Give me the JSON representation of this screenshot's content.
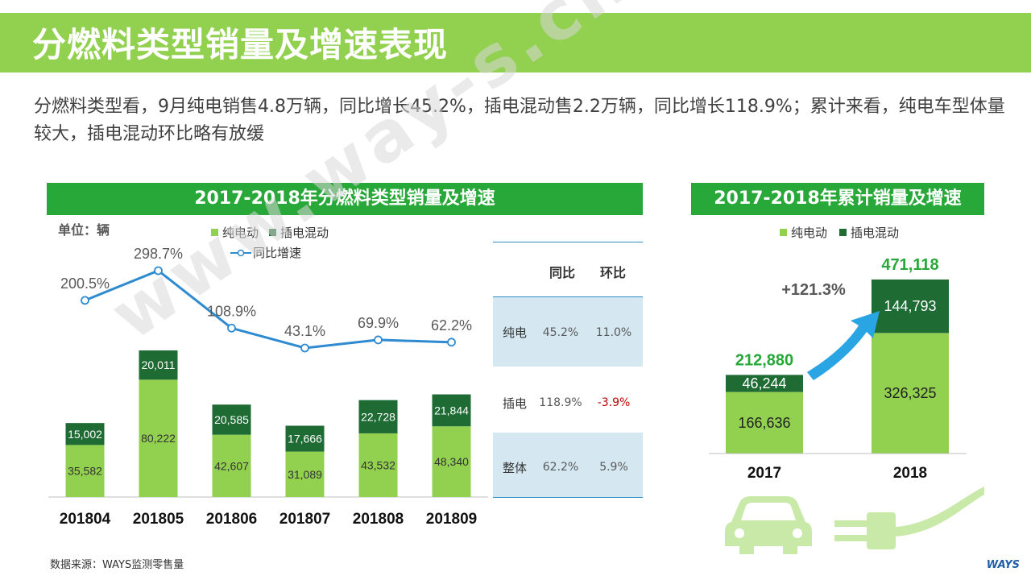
{
  "page": {
    "title": "分燃料类型销量及增速表现",
    "subtitle": "分燃料类型看，9月纯电销售4.8万辆，同比增长45.2%，插电混动售2.2万辆，同比增长118.9%；累计来看，纯电车型体量较大，插电混动环比略有放缓",
    "source": "数据来源：WAYS监测零售量",
    "brand": "WAYS",
    "watermark": "www.way-s.cn"
  },
  "colors": {
    "title_bar": "#92d050",
    "header": "#27a838",
    "ev": "#92d050",
    "phev": "#1e6b34",
    "line": "#2e8bd0",
    "table_band": "#d5e8f2",
    "neg": "#c00000",
    "total_label": "#27a838"
  },
  "left_chart": {
    "header": "2017-2018年分燃料类型销量及增速",
    "unit": "单位：辆",
    "legend_ev": "纯电动",
    "legend_phev": "插电混动",
    "legend_line": "同比增速"
  },
  "table": {
    "col_yoy": "同比",
    "col_mom": "环比",
    "rows": [
      {
        "label": "纯电",
        "yoy": "45.2%",
        "mom": "11.0%",
        "negative": false
      },
      {
        "label": "插电",
        "yoy": "118.9%",
        "mom": "-3.9%",
        "negative": true
      },
      {
        "label": "整体",
        "yoy": "62.2%",
        "mom": "5.9%",
        "negative": false
      }
    ]
  },
  "right_chart": {
    "header": "2017-2018年累计销量及增速",
    "legend_ev": "纯电动",
    "legend_phev": "插电混动",
    "growth_label": "+121.3%"
  },
  "chart_data": [
    {
      "type": "bar",
      "stacked": true,
      "title": "2017-2018年分燃料类型销量及增速",
      "categories": [
        "201804",
        "201805",
        "201806",
        "201807",
        "201808",
        "201809"
      ],
      "series": [
        {
          "name": "纯电动",
          "values": [
            35582,
            80222,
            42607,
            31089,
            43532,
            48340
          ]
        },
        {
          "name": "插电混动",
          "values": [
            15002,
            20011,
            20585,
            17666,
            22728,
            21844
          ]
        }
      ],
      "line": {
        "name": "同比增速",
        "values": [
          200.5,
          298.7,
          108.9,
          43.1,
          69.9,
          62.2
        ],
        "labels": [
          "200.5%",
          "298.7%",
          "108.9%",
          "43.1%",
          "69.9%",
          "62.2%"
        ]
      },
      "ylabel": "单位：辆",
      "legend": "top"
    },
    {
      "type": "bar",
      "stacked": true,
      "title": "2017-2018年累计销量及增速",
      "categories": [
        "2017",
        "2018"
      ],
      "series": [
        {
          "name": "纯电动",
          "values": [
            166636,
            326325
          ]
        },
        {
          "name": "插电混动",
          "values": [
            46244,
            144793
          ]
        }
      ],
      "totals": [
        212880,
        471118
      ],
      "total_labels": [
        "212,880",
        "471,118"
      ],
      "growth": "+121.3%",
      "legend": "top"
    }
  ]
}
